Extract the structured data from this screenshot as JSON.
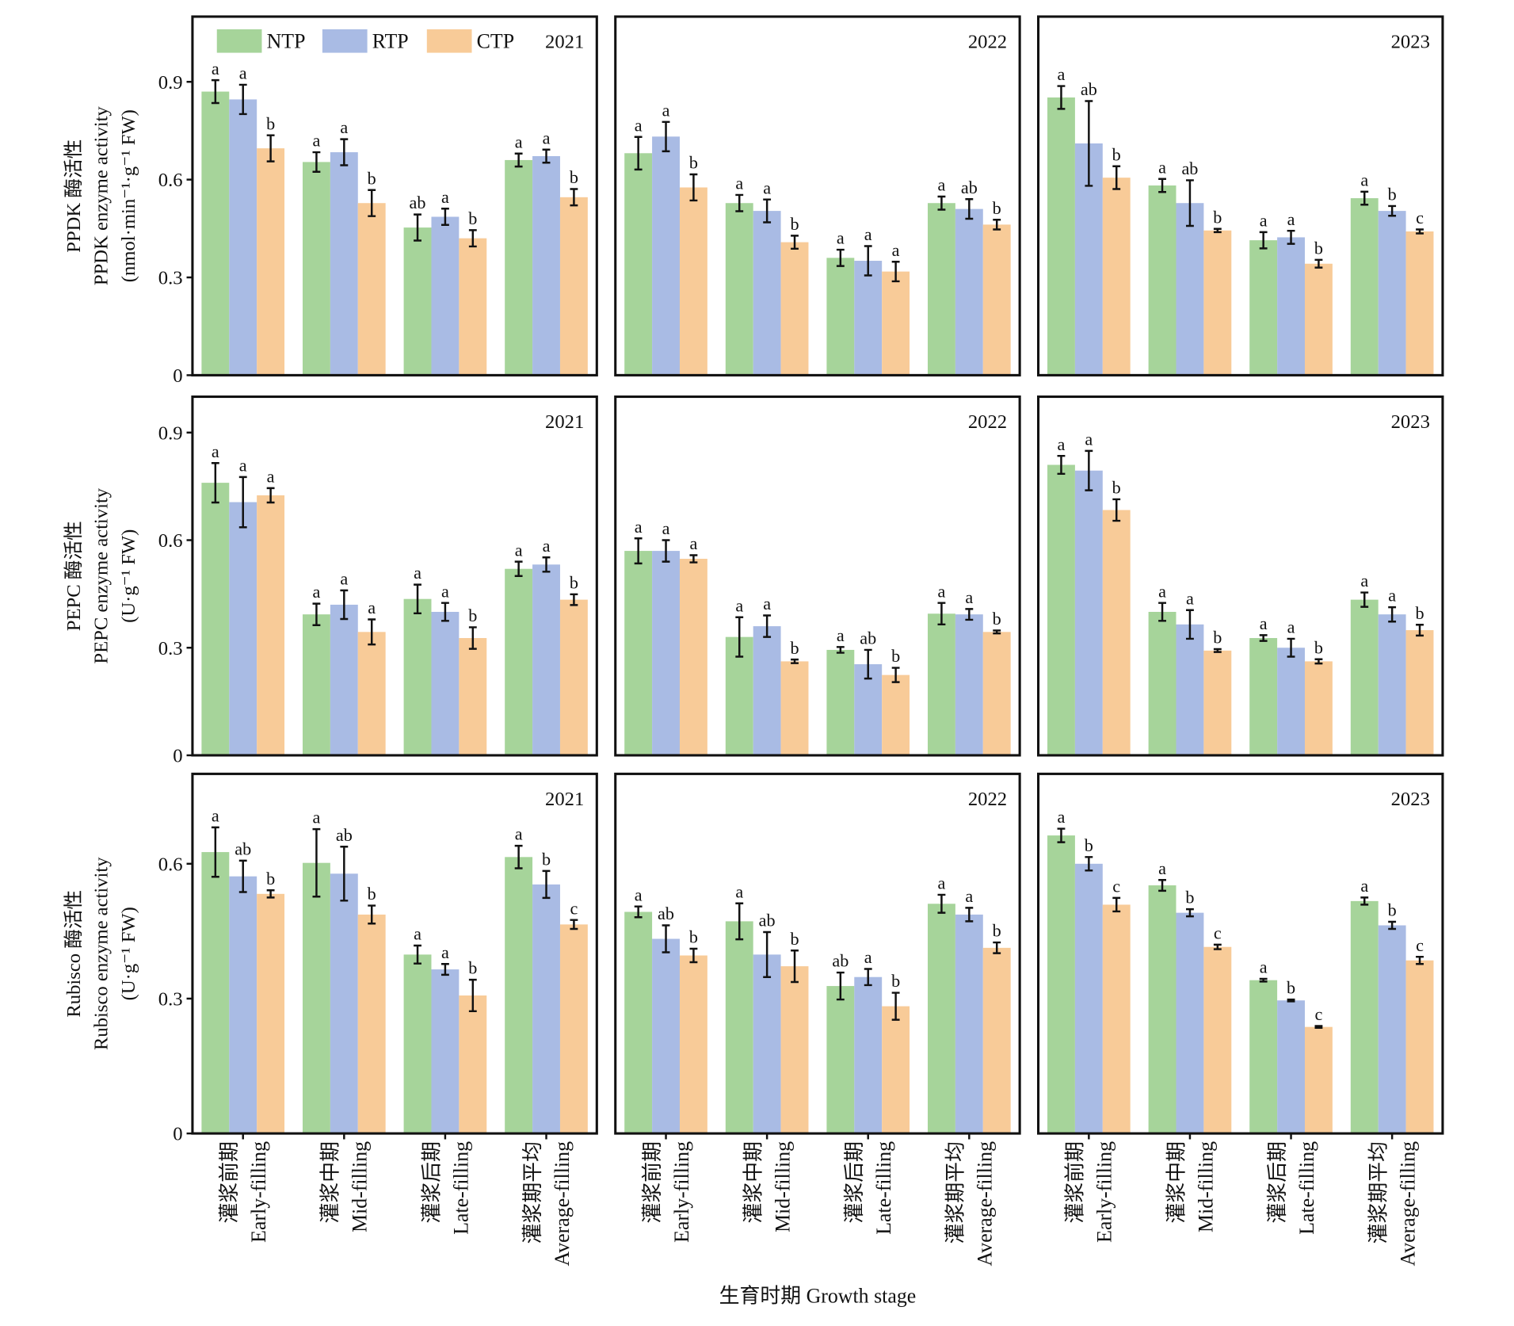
{
  "chart_data": [
    {
      "type": "bar",
      "title": "2021",
      "ylim": [
        0,
        1.1
      ],
      "yticks": [
        0,
        0.3,
        0.6,
        0.9
      ],
      "ylabel": [
        "PPDK 酶活性",
        "PPDK enzyme activity",
        "(nmol·min⁻¹·g⁻¹ FW)"
      ],
      "series": [
        {
          "name": "NTP",
          "color": "#a6d49a",
          "values": [
            0.87,
            0.654,
            0.453,
            0.66
          ],
          "errors": [
            0.035,
            0.03,
            0.04,
            0.02
          ],
          "letters": [
            "a",
            "a",
            "ab",
            "a"
          ]
        },
        {
          "name": "RTP",
          "color": "#a9bbe4",
          "values": [
            0.846,
            0.684,
            0.486,
            0.672
          ],
          "errors": [
            0.045,
            0.04,
            0.025,
            0.02
          ],
          "letters": [
            "a",
            "a",
            "a",
            "a"
          ]
        },
        {
          "name": "CTP",
          "color": "#f8cb98",
          "values": [
            0.696,
            0.528,
            0.42,
            0.546
          ],
          "errors": [
            0.04,
            0.04,
            0.025,
            0.025
          ],
          "letters": [
            "b",
            "b",
            "b",
            "b"
          ]
        }
      ]
    },
    {
      "type": "bar",
      "title": "2022",
      "ylim": [
        0,
        1.1
      ],
      "series": [
        {
          "color": "#a6d49a",
          "values": [
            0.681,
            0.528,
            0.36,
            0.528
          ],
          "errors": [
            0.05,
            0.025,
            0.025,
            0.02
          ],
          "letters": [
            "a",
            "a",
            "a",
            "a"
          ]
        },
        {
          "color": "#a9bbe4",
          "values": [
            0.732,
            0.504,
            0.351,
            0.51
          ],
          "errors": [
            0.045,
            0.035,
            0.045,
            0.03
          ],
          "letters": [
            "a",
            "a",
            "a",
            "ab"
          ]
        },
        {
          "color": "#f8cb98",
          "values": [
            0.576,
            0.408,
            0.318,
            0.462
          ],
          "errors": [
            0.04,
            0.02,
            0.03,
            0.015
          ],
          "letters": [
            "b",
            "b",
            "a",
            "b"
          ]
        }
      ]
    },
    {
      "type": "bar",
      "title": "2023",
      "ylim": [
        0,
        1.1
      ],
      "series": [
        {
          "color": "#a6d49a",
          "values": [
            0.852,
            0.582,
            0.414,
            0.543
          ],
          "errors": [
            0.035,
            0.02,
            0.025,
            0.02
          ],
          "letters": [
            "a",
            "a",
            "a",
            "a"
          ]
        },
        {
          "color": "#a9bbe4",
          "values": [
            0.711,
            0.528,
            0.423,
            0.504
          ],
          "errors": [
            0.13,
            0.07,
            0.02,
            0.015
          ],
          "letters": [
            "ab",
            "ab",
            "a",
            "b"
          ]
        },
        {
          "color": "#f8cb98",
          "values": [
            0.606,
            0.444,
            0.342,
            0.441
          ],
          "errors": [
            0.035,
            0.005,
            0.012,
            0.006
          ],
          "letters": [
            "b",
            "b",
            "b",
            "c"
          ]
        }
      ]
    },
    {
      "type": "bar",
      "title": "2021",
      "ylim": [
        0,
        1.0
      ],
      "yticks": [
        0,
        0.3,
        0.6,
        0.9
      ],
      "ylabel": [
        "PEPC 酶活性",
        "PEPC enzyme activity",
        "(U·g⁻¹ FW)"
      ],
      "series": [
        {
          "color": "#a6d49a",
          "values": [
            0.76,
            0.393,
            0.436,
            0.52
          ],
          "errors": [
            0.055,
            0.03,
            0.04,
            0.02
          ],
          "letters": [
            "a",
            "a",
            "a",
            "a"
          ]
        },
        {
          "color": "#a9bbe4",
          "values": [
            0.706,
            0.42,
            0.4,
            0.532
          ],
          "errors": [
            0.07,
            0.04,
            0.025,
            0.02
          ],
          "letters": [
            "a",
            "a",
            "a",
            "a"
          ]
        },
        {
          "color": "#f8cb98",
          "values": [
            0.725,
            0.344,
            0.327,
            0.434
          ],
          "errors": [
            0.02,
            0.035,
            0.03,
            0.015
          ],
          "letters": [
            "a",
            "a",
            "b",
            "b"
          ]
        }
      ]
    },
    {
      "type": "bar",
      "title": "2022",
      "ylim": [
        0,
        1.0
      ],
      "series": [
        {
          "color": "#a6d49a",
          "values": [
            0.57,
            0.33,
            0.294,
            0.395
          ],
          "errors": [
            0.035,
            0.055,
            0.008,
            0.03
          ],
          "letters": [
            "a",
            "a",
            "a",
            "a"
          ]
        },
        {
          "color": "#a9bbe4",
          "values": [
            0.57,
            0.36,
            0.254,
            0.393
          ],
          "errors": [
            0.03,
            0.03,
            0.04,
            0.015
          ],
          "letters": [
            "a",
            "a",
            "ab",
            "a"
          ]
        },
        {
          "color": "#f8cb98",
          "values": [
            0.548,
            0.262,
            0.224,
            0.344
          ],
          "errors": [
            0.01,
            0.005,
            0.02,
            0.004
          ],
          "letters": [
            "a",
            "b",
            "b",
            "b"
          ]
        }
      ]
    },
    {
      "type": "bar",
      "title": "2023",
      "ylim": [
        0,
        1.0
      ],
      "series": [
        {
          "color": "#a6d49a",
          "values": [
            0.81,
            0.4,
            0.327,
            0.434
          ],
          "errors": [
            0.025,
            0.025,
            0.008,
            0.02
          ],
          "letters": [
            "a",
            "a",
            "a",
            "a"
          ]
        },
        {
          "color": "#a9bbe4",
          "values": [
            0.794,
            0.365,
            0.3,
            0.393
          ],
          "errors": [
            0.055,
            0.04,
            0.025,
            0.02
          ],
          "letters": [
            "a",
            "a",
            "a",
            "a"
          ]
        },
        {
          "color": "#f8cb98",
          "values": [
            0.684,
            0.292,
            0.262,
            0.349
          ],
          "errors": [
            0.03,
            0.004,
            0.006,
            0.015
          ],
          "letters": [
            "b",
            "b",
            "b",
            "b"
          ]
        }
      ]
    },
    {
      "type": "bar",
      "title": "2021",
      "ylim": [
        0,
        0.8
      ],
      "yticks": [
        0,
        0.3,
        0.6
      ],
      "ylabel": [
        "Rubisco 酶活性",
        "Rubisco enzyme activity",
        "(U·g⁻¹ FW)"
      ],
      "categories": [
        [
          "灌浆前期",
          "Early-filling"
        ],
        [
          "灌浆中期",
          "Mid-filling"
        ],
        [
          "灌浆后期",
          "Late-filling"
        ],
        [
          "灌浆期平均",
          "Average-filling"
        ]
      ],
      "series": [
        {
          "color": "#a6d49a",
          "values": [
            0.626,
            0.602,
            0.398,
            0.615
          ],
          "errors": [
            0.055,
            0.075,
            0.02,
            0.025
          ],
          "letters": [
            "a",
            "a",
            "a",
            "a"
          ]
        },
        {
          "color": "#a9bbe4",
          "values": [
            0.572,
            0.578,
            0.365,
            0.554
          ],
          "errors": [
            0.035,
            0.06,
            0.012,
            0.03
          ],
          "letters": [
            "ab",
            "ab",
            "a",
            "b"
          ]
        },
        {
          "color": "#f8cb98",
          "values": [
            0.533,
            0.487,
            0.307,
            0.465
          ],
          "errors": [
            0.008,
            0.02,
            0.035,
            0.01
          ],
          "letters": [
            "b",
            "b",
            "b",
            "c"
          ]
        }
      ]
    },
    {
      "type": "bar",
      "title": "2022",
      "ylim": [
        0,
        0.8
      ],
      "xlabel": "生育时期 Growth stage",
      "categories": [
        [
          "灌浆前期",
          "Early-filling"
        ],
        [
          "灌浆中期",
          "Mid-filling"
        ],
        [
          "灌浆后期",
          "Late-filling"
        ],
        [
          "灌浆期平均",
          "Average-filling"
        ]
      ],
      "series": [
        {
          "color": "#a6d49a",
          "values": [
            0.493,
            0.472,
            0.328,
            0.511
          ],
          "errors": [
            0.012,
            0.04,
            0.03,
            0.02
          ],
          "letters": [
            "a",
            "a",
            "ab",
            "a"
          ]
        },
        {
          "color": "#a9bbe4",
          "values": [
            0.433,
            0.398,
            0.348,
            0.487
          ],
          "errors": [
            0.03,
            0.05,
            0.018,
            0.015
          ],
          "letters": [
            "ab",
            "ab",
            "a",
            "a"
          ]
        },
        {
          "color": "#f8cb98",
          "values": [
            0.396,
            0.372,
            0.283,
            0.413
          ],
          "errors": [
            0.015,
            0.035,
            0.03,
            0.012
          ],
          "letters": [
            "b",
            "b",
            "b",
            "b"
          ]
        }
      ]
    },
    {
      "type": "bar",
      "title": "2023",
      "ylim": [
        0,
        0.8
      ],
      "categories": [
        [
          "灌浆前期",
          "Early-filling"
        ],
        [
          "灌浆中期",
          "Mid-filling"
        ],
        [
          "灌浆后期",
          "Late-filling"
        ],
        [
          "灌浆期平均",
          "Average-filling"
        ]
      ],
      "series": [
        {
          "color": "#a6d49a",
          "values": [
            0.663,
            0.552,
            0.341,
            0.517
          ],
          "errors": [
            0.015,
            0.012,
            0.003,
            0.008
          ],
          "letters": [
            "a",
            "a",
            "a",
            "a"
          ]
        },
        {
          "color": "#a9bbe4",
          "values": [
            0.6,
            0.491,
            0.296,
            0.463
          ],
          "errors": [
            0.015,
            0.008,
            0.002,
            0.008
          ],
          "letters": [
            "b",
            "b",
            "b",
            "b"
          ]
        },
        {
          "color": "#f8cb98",
          "values": [
            0.509,
            0.415,
            0.237,
            0.385
          ],
          "errors": [
            0.015,
            0.005,
            0.002,
            0.008
          ],
          "letters": [
            "c",
            "c",
            "c",
            "c"
          ]
        }
      ]
    }
  ]
}
